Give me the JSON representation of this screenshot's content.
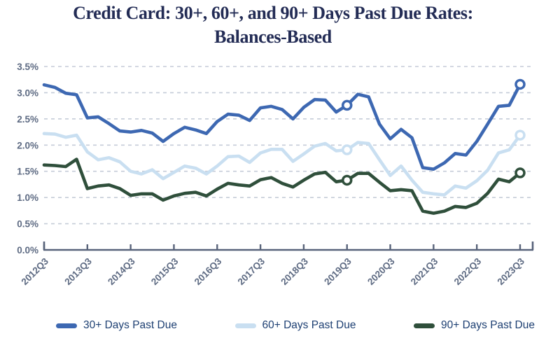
{
  "title": {
    "line1": "Credit Card: 30+, 60+, and 90+ Days Past Due Rates:",
    "line2": "Balances-Based"
  },
  "chart_data": {
    "type": "line",
    "title": "Credit Card: 30+, 60+, and 90+ Days Past Due Rates: Balances-Based",
    "x": [
      "2012Q3",
      "2012Q4",
      "2013Q1",
      "2013Q2",
      "2013Q3",
      "2013Q4",
      "2014Q1",
      "2014Q2",
      "2014Q3",
      "2014Q4",
      "2015Q1",
      "2015Q2",
      "2015Q3",
      "2015Q4",
      "2016Q1",
      "2016Q2",
      "2016Q3",
      "2016Q4",
      "2017Q1",
      "2017Q2",
      "2017Q3",
      "2017Q4",
      "2018Q1",
      "2018Q2",
      "2018Q3",
      "2018Q4",
      "2019Q1",
      "2019Q2",
      "2019Q3",
      "2019Q4",
      "2020Q1",
      "2020Q2",
      "2020Q3",
      "2020Q4",
      "2021Q1",
      "2021Q2",
      "2021Q3",
      "2021Q4",
      "2022Q1",
      "2022Q2",
      "2022Q3",
      "2022Q4",
      "2023Q1",
      "2023Q2",
      "2023Q3"
    ],
    "x_axis_tick_labels": [
      "2012Q3",
      "2013Q3",
      "2014Q3",
      "2015Q3",
      "2016Q3",
      "2017Q3",
      "2018Q3",
      "2019Q3",
      "2020Q3",
      "2021Q3",
      "2022Q3",
      "2023Q3"
    ],
    "y_ticks": [
      "0.0%",
      "0.5%",
      "1.0%",
      "1.5%",
      "2.0%",
      "2.5%",
      "3.0%",
      "3.5%"
    ],
    "ylim": [
      0,
      3.5
    ],
    "grid": "horizontal dashed",
    "legend_position": "bottom",
    "highlighted_points": [
      "2019Q3",
      "2023Q3"
    ],
    "series": [
      {
        "name": "30+ Days Past Due",
        "color": "#3d68b2",
        "values": [
          3.15,
          3.1,
          2.99,
          2.96,
          2.52,
          2.54,
          2.41,
          2.27,
          2.25,
          2.28,
          2.23,
          2.07,
          2.22,
          2.34,
          2.29,
          2.22,
          2.45,
          2.59,
          2.57,
          2.47,
          2.71,
          2.74,
          2.68,
          2.5,
          2.72,
          2.87,
          2.86,
          2.63,
          2.76,
          2.97,
          2.92,
          2.4,
          2.12,
          2.3,
          2.14,
          1.57,
          1.54,
          1.66,
          1.84,
          1.81,
          2.07,
          2.4,
          2.74,
          2.76,
          3.16
        ]
      },
      {
        "name": "60+ Days Past Due",
        "color": "#c9dff1",
        "values": [
          2.22,
          2.21,
          2.15,
          2.19,
          1.87,
          1.72,
          1.76,
          1.68,
          1.5,
          1.45,
          1.53,
          1.36,
          1.48,
          1.6,
          1.56,
          1.45,
          1.6,
          1.78,
          1.79,
          1.67,
          1.85,
          1.92,
          1.92,
          1.69,
          1.83,
          1.98,
          2.03,
          1.89,
          1.91,
          2.05,
          2.03,
          1.72,
          1.42,
          1.6,
          1.33,
          1.1,
          1.07,
          1.05,
          1.22,
          1.18,
          1.32,
          1.52,
          1.85,
          1.91,
          2.19
        ]
      },
      {
        "name": "90+ Days Past Due",
        "color": "#2f4f3b",
        "values": [
          1.62,
          1.61,
          1.59,
          1.73,
          1.17,
          1.22,
          1.24,
          1.17,
          1.04,
          1.07,
          1.07,
          0.95,
          1.03,
          1.08,
          1.1,
          1.03,
          1.16,
          1.27,
          1.24,
          1.22,
          1.34,
          1.38,
          1.27,
          1.2,
          1.33,
          1.45,
          1.48,
          1.3,
          1.33,
          1.46,
          1.46,
          1.29,
          1.13,
          1.15,
          1.13,
          0.74,
          0.7,
          0.74,
          0.83,
          0.81,
          0.89,
          1.08,
          1.35,
          1.3,
          1.47
        ]
      }
    ]
  },
  "colors": {
    "title_text": "#232c55",
    "axis_text": "#5e6b83",
    "axis_line": "#58637a",
    "gridline": "#c5ccd8",
    "legend_text": "#1d3f72",
    "background": "#ffffff",
    "marker_fill": "#ffffff"
  },
  "legend": {
    "items": [
      {
        "label": "30+ Days Past Due",
        "color": "#3d68b2"
      },
      {
        "label": "60+ Days Past Due",
        "color": "#c9dff1"
      },
      {
        "label": "90+ Days Past Due",
        "color": "#2f4f3b"
      }
    ]
  }
}
